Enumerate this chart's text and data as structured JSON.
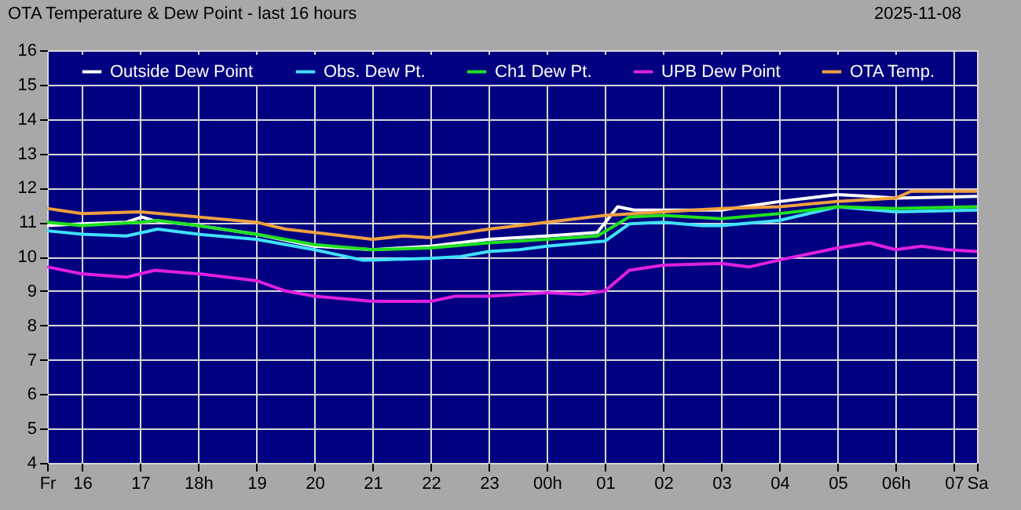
{
  "chart_data": {
    "type": "line",
    "title": "OTA Temperature & Dew Point - last 16 hours",
    "annotations": [
      "2025-11-08"
    ],
    "xlim": [
      "2025-11-07T15:24",
      "2025-11-08T07:24"
    ],
    "xticks": [
      {
        "value": "2025-11-07T15:24",
        "label": "Fr"
      },
      {
        "value": "2025-11-07T16:00",
        "label": "16"
      },
      {
        "value": "2025-11-07T17:00",
        "label": "17"
      },
      {
        "value": "2025-11-07T18:00",
        "label": "18h"
      },
      {
        "value": "2025-11-07T19:00",
        "label": "19"
      },
      {
        "value": "2025-11-07T20:00",
        "label": "20"
      },
      {
        "value": "2025-11-07T21:00",
        "label": "21"
      },
      {
        "value": "2025-11-07T22:00",
        "label": "22"
      },
      {
        "value": "2025-11-07T23:00",
        "label": "23"
      },
      {
        "value": "2025-11-08T00:00",
        "label": "00h"
      },
      {
        "value": "2025-11-08T01:00",
        "label": "01"
      },
      {
        "value": "2025-11-08T02:00",
        "label": "02"
      },
      {
        "value": "2025-11-08T03:00",
        "label": "03"
      },
      {
        "value": "2025-11-08T04:00",
        "label": "04"
      },
      {
        "value": "2025-11-08T05:00",
        "label": "05"
      },
      {
        "value": "2025-11-08T06:00",
        "label": "06h"
      },
      {
        "value": "2025-11-08T07:00",
        "label": "07"
      },
      {
        "value": "2025-11-08T07:24",
        "label": "Sa"
      }
    ],
    "ylim": [
      4,
      16
    ],
    "yticks": [
      4,
      5,
      6,
      7,
      8,
      9,
      10,
      11,
      12,
      13,
      14,
      15,
      16
    ],
    "grid": true,
    "legend": "top",
    "line_style": "solid",
    "marker": "none",
    "series": [
      {
        "name": "Outside Dew Point",
        "color": "#ffffff",
        "x": [
          "2025-11-07T15:24",
          "2025-11-07T16:00",
          "2025-11-07T16:46",
          "2025-11-07T17:02",
          "2025-11-07T17:13",
          "2025-11-07T18:00",
          "2025-11-07T19:00",
          "2025-11-07T20:00",
          "2025-11-07T21:00",
          "2025-11-07T22:00",
          "2025-11-07T23:00",
          "2025-11-08T00:00",
          "2025-11-08T00:52",
          "2025-11-08T01:13",
          "2025-11-08T01:30",
          "2025-11-08T02:00",
          "2025-11-08T03:00",
          "2025-11-08T04:00",
          "2025-11-08T05:00",
          "2025-11-08T05:33",
          "2025-11-08T06:00",
          "2025-11-08T07:24"
        ],
        "values": [
          10.9,
          10.95,
          11.0,
          11.15,
          11.05,
          10.9,
          10.65,
          10.3,
          10.2,
          10.3,
          10.5,
          10.6,
          10.7,
          11.45,
          11.35,
          11.35,
          11.35,
          11.6,
          11.8,
          11.75,
          11.7,
          11.75
        ]
      },
      {
        "name": "Obs. Dew Pt.",
        "color": "#40e0ff",
        "x": [
          "2025-11-07T15:24",
          "2025-11-07T16:00",
          "2025-11-07T16:46",
          "2025-11-07T17:18",
          "2025-11-07T18:00",
          "2025-11-07T19:00",
          "2025-11-07T20:00",
          "2025-11-07T20:49",
          "2025-11-07T21:00",
          "2025-11-07T22:00",
          "2025-11-07T22:31",
          "2025-11-07T23:00",
          "2025-11-07T23:31",
          "2025-11-08T00:00",
          "2025-11-08T01:00",
          "2025-11-08T01:25",
          "2025-11-08T02:00",
          "2025-11-08T02:40",
          "2025-11-08T03:00",
          "2025-11-08T04:00",
          "2025-11-08T05:00",
          "2025-11-08T06:00",
          "2025-11-08T07:24"
        ],
        "values": [
          10.75,
          10.65,
          10.6,
          10.8,
          10.65,
          10.5,
          10.2,
          9.9,
          9.9,
          9.95,
          10.0,
          10.15,
          10.2,
          10.3,
          10.45,
          10.95,
          11.0,
          10.9,
          10.9,
          11.05,
          11.45,
          11.3,
          11.35
        ]
      },
      {
        "name": "Ch1 Dew Pt.",
        "color": "#20e020",
        "x": [
          "2025-11-07T15:24",
          "2025-11-07T16:00",
          "2025-11-07T17:00",
          "2025-11-07T17:18",
          "2025-11-07T18:00",
          "2025-11-07T19:00",
          "2025-11-07T20:00",
          "2025-11-07T21:00",
          "2025-11-07T22:00",
          "2025-11-07T23:00",
          "2025-11-07T23:31",
          "2025-11-08T00:00",
          "2025-11-08T00:52",
          "2025-11-08T01:25",
          "2025-11-08T02:00",
          "2025-11-08T03:00",
          "2025-11-08T04:00",
          "2025-11-08T05:00",
          "2025-11-08T06:00",
          "2025-11-08T07:24"
        ],
        "values": [
          11.0,
          10.9,
          11.0,
          11.05,
          10.9,
          10.65,
          10.35,
          10.2,
          10.25,
          10.4,
          10.45,
          10.5,
          10.6,
          11.15,
          11.2,
          11.1,
          11.25,
          11.45,
          11.4,
          11.45
        ]
      },
      {
        "name": "UPB Dew Point",
        "color": "#e020e0",
        "x": [
          "2025-11-07T15:24",
          "2025-11-07T16:00",
          "2025-11-07T16:46",
          "2025-11-07T17:15",
          "2025-11-07T18:00",
          "2025-11-07T19:00",
          "2025-11-07T19:30",
          "2025-11-07T20:00",
          "2025-11-07T21:00",
          "2025-11-07T22:00",
          "2025-11-07T22:26",
          "2025-11-07T23:00",
          "2025-11-07T23:31",
          "2025-11-08T00:00",
          "2025-11-08T00:35",
          "2025-11-08T01:00",
          "2025-11-08T01:25",
          "2025-11-08T02:00",
          "2025-11-08T03:00",
          "2025-11-08T03:29",
          "2025-11-08T04:00",
          "2025-11-08T05:00",
          "2025-11-08T05:33",
          "2025-11-08T06:00",
          "2025-11-08T06:27",
          "2025-11-08T06:54",
          "2025-11-08T07:24"
        ],
        "values": [
          9.7,
          9.5,
          9.4,
          9.6,
          9.5,
          9.3,
          9.0,
          8.85,
          8.7,
          8.7,
          8.85,
          8.85,
          8.9,
          8.95,
          8.9,
          9.0,
          9.6,
          9.75,
          9.8,
          9.7,
          9.9,
          10.25,
          10.4,
          10.2,
          10.3,
          10.2,
          10.15
        ]
      },
      {
        "name": "OTA Temp.",
        "color": "#f0a040",
        "x": [
          "2025-11-07T15:24",
          "2025-11-07T16:00",
          "2025-11-07T17:00",
          "2025-11-07T18:00",
          "2025-11-07T19:00",
          "2025-11-07T19:30",
          "2025-11-07T20:00",
          "2025-11-07T21:00",
          "2025-11-07T21:32",
          "2025-11-07T22:00",
          "2025-11-07T23:00",
          "2025-11-07T23:31",
          "2025-11-08T00:00",
          "2025-11-08T01:00",
          "2025-11-08T02:00",
          "2025-11-08T03:00",
          "2025-11-08T04:00",
          "2025-11-08T05:00",
          "2025-11-08T06:00",
          "2025-11-08T06:16",
          "2025-11-08T07:24"
        ],
        "values": [
          11.4,
          11.25,
          11.3,
          11.15,
          11.0,
          10.8,
          10.7,
          10.5,
          10.6,
          10.55,
          10.8,
          10.9,
          11.0,
          11.2,
          11.3,
          11.4,
          11.45,
          11.6,
          11.7,
          11.9,
          11.9
        ]
      }
    ]
  }
}
